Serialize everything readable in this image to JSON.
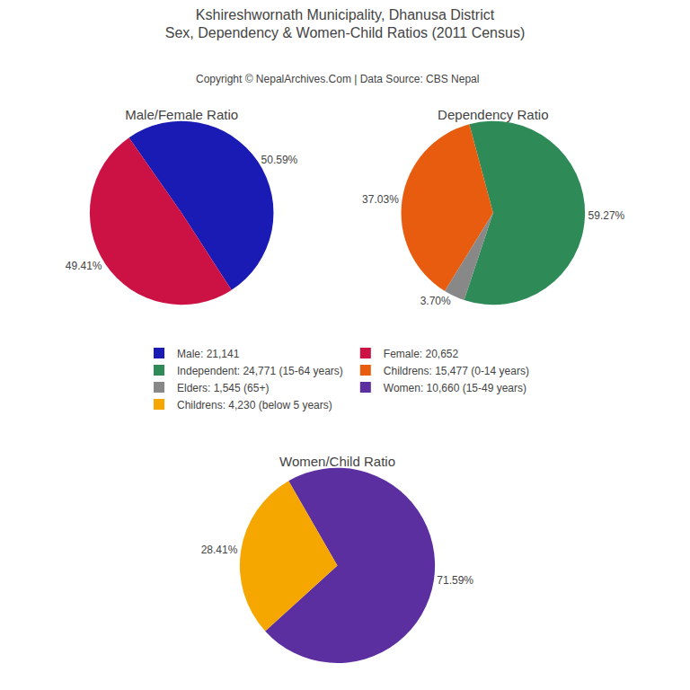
{
  "title": "Kshireshwornath Municipality, Dhanusa District",
  "subtitle": "Sex, Dependency & Women-Child Ratios (2011 Census)",
  "annotations": [
    "Copyright © NepalArchives.Com | Data Source: CBS Nepal"
  ],
  "chart_data": [
    {
      "type": "pie",
      "title": "Male/Female Ratio",
      "categories": [
        "Male: 21,141",
        "Female: 20,652"
      ],
      "values": [
        50.59,
        49.41
      ],
      "value_labels": [
        "50.59%",
        "49.41%"
      ],
      "colors": [
        "#1a1ab5",
        "#cc1144"
      ],
      "data_labels": true,
      "legend": "center"
    },
    {
      "type": "pie",
      "title": "Dependency Ratio",
      "categories": [
        "Independent: 24,771 (15-64 years)",
        "Childrens: 15,477 (0-14 years)",
        "Elders: 1,545 (65+)"
      ],
      "values": [
        59.27,
        37.03,
        3.7
      ],
      "value_labels": [
        "59.27%",
        "37.03%",
        "3.70%"
      ],
      "colors": [
        "#2e8b57",
        "#e85c10",
        "#888888"
      ],
      "data_labels": true,
      "legend": "center"
    },
    {
      "type": "pie",
      "title": "Women/Child Ratio",
      "categories": [
        "Women: 10,660 (15-49 years)",
        "Childrens: 4,230 (below 5 years)"
      ],
      "values": [
        71.59,
        28.41
      ],
      "value_labels": [
        "71.59%",
        "28.41%"
      ],
      "colors": [
        "#5b2fa0",
        "#f5a700"
      ],
      "data_labels": true,
      "legend": "center"
    }
  ]
}
